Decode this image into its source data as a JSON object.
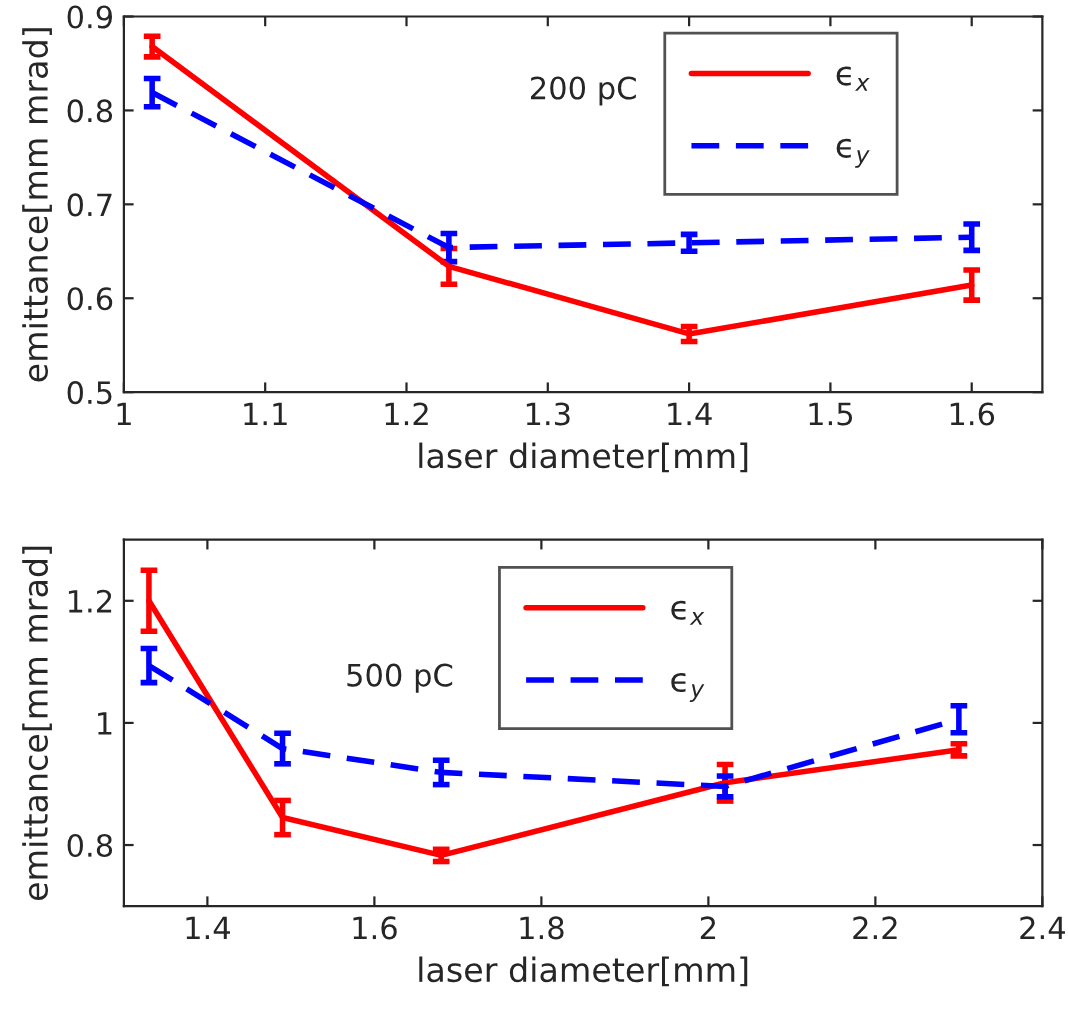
{
  "chart_data": [
    {
      "type": "line",
      "xlabel": "laser diameter[mm]",
      "ylabel": "emittance[mm mrad]",
      "annotations": [
        "200 pC"
      ],
      "xlim": [
        1,
        1.65
      ],
      "ylim": [
        0.5,
        0.9
      ],
      "xticks": [
        1,
        1.1,
        1.2,
        1.3,
        1.4,
        1.5,
        1.6
      ],
      "yticks": [
        0.5,
        0.6,
        0.7,
        0.8,
        0.9
      ],
      "legend": "top right",
      "grid": false,
      "x": [
        1.02,
        1.23,
        1.4,
        1.6
      ],
      "series": [
        {
          "name": "ϵ$_{x}$",
          "color": "#ff0000",
          "line_style": "solid",
          "values": [
            0.868,
            0.634,
            0.562,
            0.614
          ],
          "errors": [
            0.011,
            0.019,
            0.008,
            0.016
          ]
        },
        {
          "name": "ϵ$_{y}$",
          "color": "#0000ff",
          "line_style": "dashed",
          "values": [
            0.819,
            0.654,
            0.659,
            0.665
          ],
          "errors": [
            0.015,
            0.015,
            0.009,
            0.014
          ]
        }
      ]
    },
    {
      "type": "line",
      "xlabel": "laser diameter[mm]",
      "ylabel": "emittance[mm mrad]",
      "annotations": [
        "500 pC"
      ],
      "xlim": [
        1.3,
        2.4
      ],
      "ylim": [
        0.7,
        1.3
      ],
      "xticks": [
        1.4,
        1.6,
        1.8,
        2,
        2.2,
        2.4
      ],
      "yticks": [
        0.8,
        1,
        1.2
      ],
      "legend": "top right",
      "grid": false,
      "x": [
        1.33,
        1.49,
        1.68,
        2.02,
        2.3
      ],
      "series": [
        {
          "name": "ϵ$_{x}$",
          "color": "#ff0000",
          "line_style": "solid",
          "values": [
            1.2,
            0.845,
            0.783,
            0.902,
            0.956
          ],
          "errors": [
            0.05,
            0.028,
            0.01,
            0.03,
            0.01
          ]
        },
        {
          "name": "ϵ$_{y}$",
          "color": "#0000ff",
          "line_style": "dashed",
          "values": [
            1.094,
            0.958,
            0.919,
            0.896,
            1.006
          ],
          "errors": [
            0.028,
            0.025,
            0.02,
            0.017,
            0.022
          ]
        }
      ]
    }
  ]
}
